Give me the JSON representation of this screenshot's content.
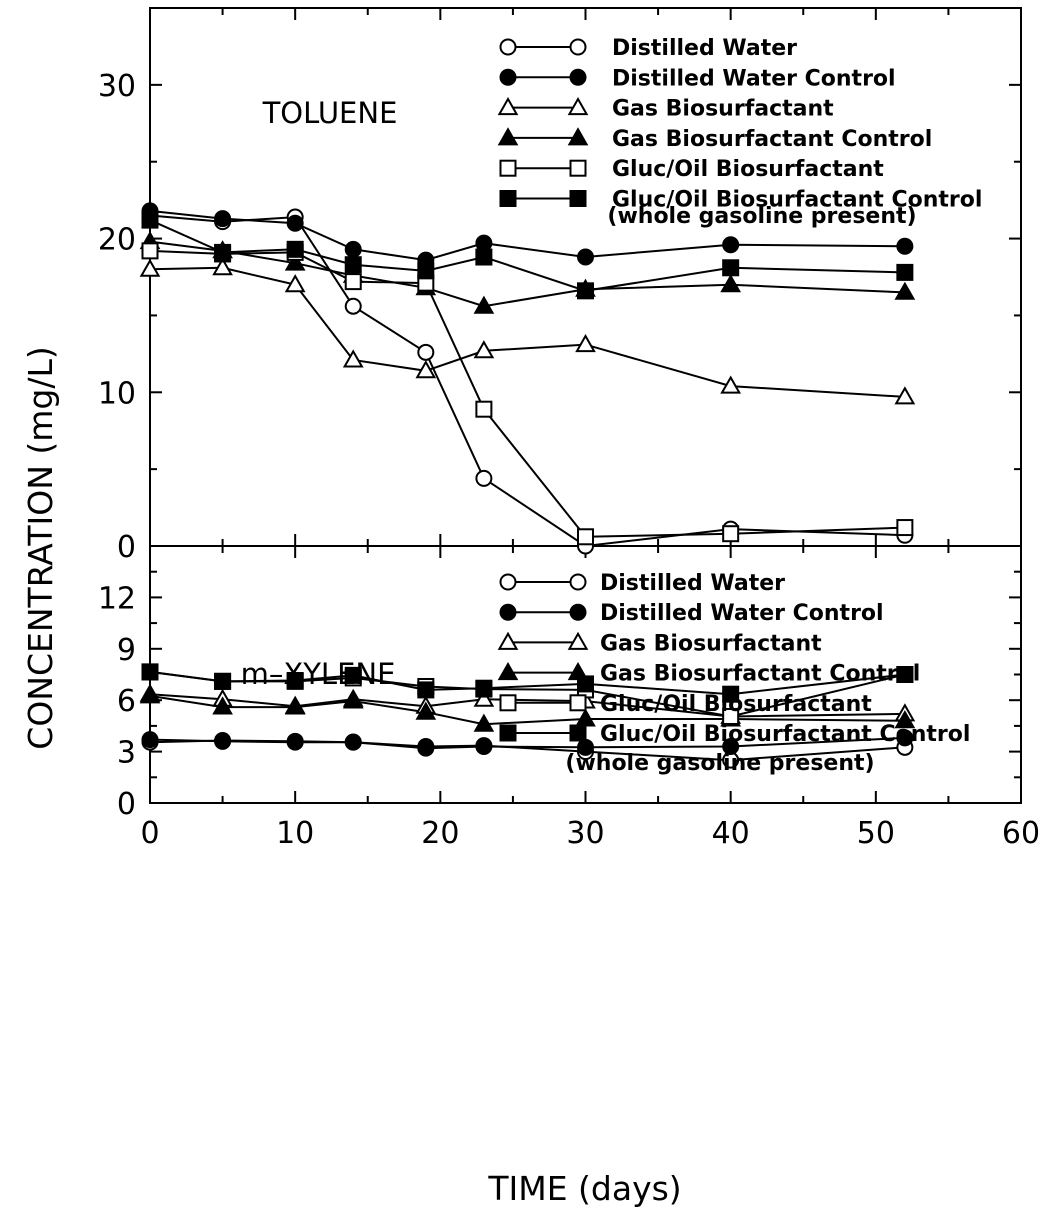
{
  "chart_data": [
    {
      "type": "line",
      "title": "TOLUENE",
      "xlabel": "TIME (days)",
      "ylabel": "CONCENTRATION (mg/L)",
      "xlim": [
        0,
        60
      ],
      "ylim": [
        0,
        35
      ],
      "x_ticks": [
        "0",
        "10",
        "20",
        "30",
        "40",
        "50",
        "60"
      ],
      "y_ticks": [
        "0",
        "10",
        "20",
        "30"
      ],
      "legend_note": "(whole gasoline present)",
      "grid": false,
      "legend_position": "top-right",
      "series": [
        {
          "name": "Distilled Water",
          "marker": "circle-open",
          "x": [
            0,
            5,
            10,
            14,
            19,
            23,
            30,
            40,
            52
          ],
          "y": [
            21.5,
            21.1,
            21.4,
            15.6,
            12.6,
            4.4,
            0.0,
            1.1,
            0.7
          ]
        },
        {
          "name": "Distilled Water Control",
          "marker": "circle-filled",
          "x": [
            0,
            5,
            10,
            14,
            19,
            23,
            30,
            40,
            52
          ],
          "y": [
            21.8,
            21.3,
            21.0,
            19.3,
            18.6,
            19.7,
            18.8,
            19.6,
            19.5
          ]
        },
        {
          "name": "Gas Biosurfactant",
          "marker": "triangle-open",
          "x": [
            0,
            5,
            10,
            14,
            19,
            23,
            30,
            40,
            52
          ],
          "y": [
            18.0,
            18.1,
            17.0,
            12.1,
            11.4,
            12.7,
            13.1,
            10.4,
            9.7
          ]
        },
        {
          "name": "Gas Biosurfactant Control",
          "marker": "triangle-filled",
          "x": [
            0,
            5,
            10,
            14,
            19,
            23,
            30,
            40,
            52
          ],
          "y": [
            19.8,
            19.2,
            18.4,
            17.6,
            16.8,
            15.6,
            16.7,
            17.0,
            16.5
          ]
        },
        {
          "name": "Gluc/Oil Biosurfactant",
          "marker": "square-open",
          "x": [
            0,
            5,
            10,
            14,
            19,
            23,
            30,
            40,
            52
          ],
          "y": [
            19.2,
            19.0,
            19.1,
            17.2,
            17.1,
            8.9,
            0.6,
            0.8,
            1.2
          ]
        },
        {
          "name": "Gluc/Oil Biosurfactant Control",
          "marker": "square-filled",
          "x": [
            0,
            5,
            10,
            14,
            19,
            23,
            30,
            40,
            52
          ],
          "y": [
            21.2,
            19.1,
            19.3,
            18.3,
            17.9,
            18.8,
            16.6,
            18.1,
            17.8
          ]
        }
      ]
    },
    {
      "type": "line",
      "title": "m–XYLENE",
      "xlabel": "TIME (days)",
      "ylabel": "CONCENTRATION (mg/L)",
      "xlim": [
        0,
        60
      ],
      "ylim": [
        0,
        15
      ],
      "x_ticks": [
        "0",
        "10",
        "20",
        "30",
        "40",
        "50",
        "60"
      ],
      "y_ticks": [
        "0",
        "3",
        "6",
        "9",
        "12"
      ],
      "legend_note": "(whole gasoline present)",
      "grid": false,
      "legend_position": "top-right",
      "series": [
        {
          "name": "Distilled Water",
          "marker": "circle-open",
          "x": [
            0,
            5,
            10,
            14,
            19,
            23,
            30,
            40,
            52
          ],
          "y": [
            3.55,
            3.65,
            3.6,
            3.55,
            3.3,
            3.35,
            3.0,
            2.5,
            3.25
          ]
        },
        {
          "name": "Distilled Water Control",
          "marker": "circle-filled",
          "x": [
            0,
            5,
            10,
            14,
            19,
            23,
            30,
            40,
            52
          ],
          "y": [
            3.7,
            3.6,
            3.55,
            3.55,
            3.2,
            3.3,
            3.25,
            3.3,
            3.8
          ]
        },
        {
          "name": "Gas Biosurfactant",
          "marker": "triangle-open",
          "x": [
            0,
            5,
            10,
            14,
            19,
            23,
            30,
            40,
            52
          ],
          "y": [
            6.35,
            6.05,
            5.65,
            6.05,
            5.65,
            6.05,
            5.95,
            5.05,
            5.2
          ]
        },
        {
          "name": "Gas Biosurfactant Control",
          "marker": "triangle-filled",
          "x": [
            0,
            5,
            10,
            14,
            19,
            23,
            30,
            40,
            52
          ],
          "y": [
            6.25,
            5.6,
            5.6,
            5.95,
            5.3,
            4.6,
            4.9,
            4.9,
            4.8
          ]
        },
        {
          "name": "Gluc/Oil Biosurfactant",
          "marker": "square-open",
          "x": [
            0,
            5,
            10,
            14,
            19,
            23,
            30,
            40,
            52
          ],
          "y": [
            7.65,
            7.1,
            7.1,
            7.3,
            6.8,
            6.65,
            6.6,
            5.05,
            7.5
          ]
        },
        {
          "name": "Gluc/Oil Biosurfactant Control",
          "marker": "square-filled",
          "x": [
            0,
            5,
            10,
            14,
            19,
            23,
            30,
            40,
            52
          ],
          "y": [
            7.65,
            7.1,
            7.15,
            7.45,
            6.6,
            6.7,
            6.95,
            6.35,
            7.5
          ]
        }
      ]
    }
  ]
}
